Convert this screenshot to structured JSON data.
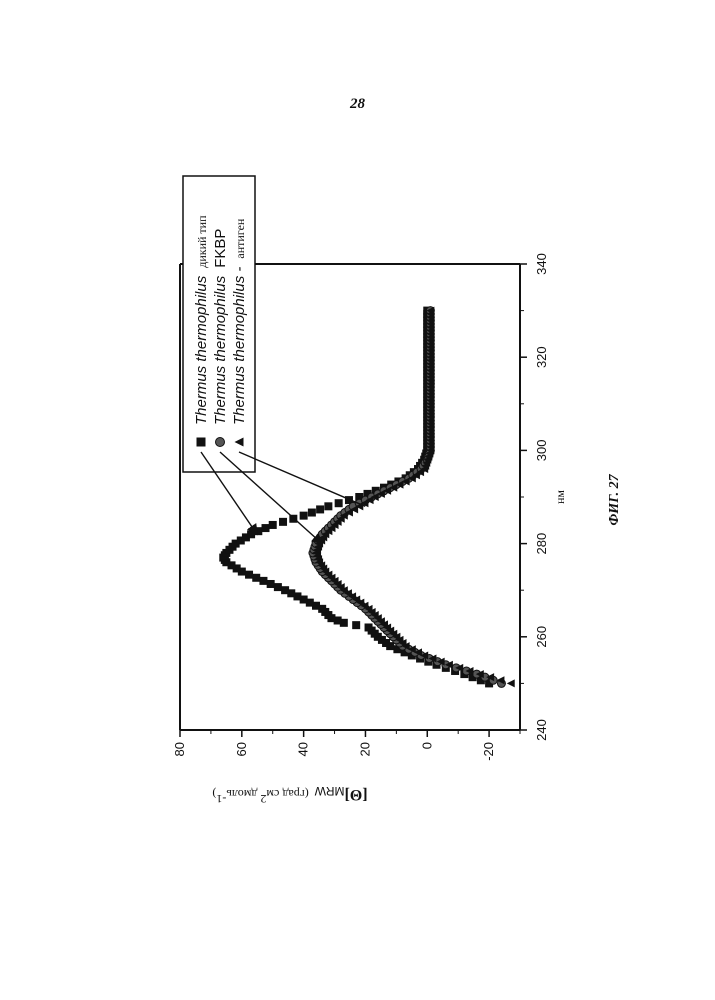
{
  "page": {
    "number": "28",
    "figure_caption": "ФИГ. 27"
  },
  "chart_data": {
    "type": "scatter",
    "title": "",
    "xlabel": "нм",
    "ylabel": "[Θ]MRW (град см2 дмоль-1)",
    "ylabel_parts": {
      "symbol": "[Θ]",
      "sub": "MRW",
      "units_main": "(град см",
      "units_sup1": "2",
      "units_mid": " дмоль",
      "units_sup2": "-1",
      "units_end": ")"
    },
    "xlim": [
      240,
      340
    ],
    "ylim": [
      -30,
      80
    ],
    "xticks": [
      "240",
      "260",
      "280",
      "300",
      "320",
      "340"
    ],
    "yticks": [
      "-20",
      "0",
      "20",
      "40",
      "60",
      "80"
    ],
    "xtick_values": [
      240,
      260,
      280,
      300,
      320,
      340
    ],
    "ytick_values": [
      -20,
      0,
      20,
      40,
      60,
      80
    ],
    "orientation": "rotated 90° counter-clockwise on page",
    "legend_placement": "top-left",
    "series": [
      {
        "name": "Thermus thermophilus дикий тип",
        "name_main": "Thermus thermophilus",
        "name_suffix": "дикий тип",
        "marker": "square",
        "color": "#111111",
        "x": [
          250,
          252,
          254,
          256,
          258,
          260,
          262,
          263,
          264,
          266,
          268,
          270,
          272,
          274,
          276,
          277,
          278,
          280,
          282,
          284,
          286,
          288,
          290,
          292,
          294,
          296,
          298,
          300,
          305,
          310,
          315,
          320,
          325,
          330
        ],
        "y": [
          -20,
          -12,
          -3,
          5,
          12,
          16,
          19,
          27,
          31,
          34,
          40,
          46,
          53,
          60,
          65,
          66,
          65,
          62,
          57,
          50,
          40,
          32,
          22,
          14,
          7,
          3,
          1,
          0,
          0,
          0,
          0,
          0,
          0,
          0
        ]
      },
      {
        "name": "Thermus thermophilus FKBP",
        "name_main": "Thermus thermophilus",
        "name_suffix": "FKBP",
        "marker": "circle",
        "color": "#111111",
        "x": [
          250,
          252,
          254,
          256,
          258,
          260,
          262,
          264,
          266,
          268,
          270,
          272,
          274,
          276,
          278,
          280,
          282,
          284,
          286,
          288,
          290,
          292,
          294,
          296,
          298,
          300,
          305,
          310,
          315,
          320,
          325,
          330
        ],
        "y": [
          -24,
          -16,
          -6,
          2,
          8,
          11,
          14,
          17,
          20,
          24,
          28,
          31,
          34,
          36,
          37,
          36,
          34,
          31,
          28,
          24,
          18,
          12,
          6,
          2,
          0,
          -1,
          -1,
          -1,
          -1,
          -1,
          -1,
          -1
        ]
      },
      {
        "name": "Thermus thermophilus - антиген",
        "name_main": "Thermus thermophilus -",
        "name_suffix": "антиген",
        "marker": "triangle",
        "color": "#111111",
        "x": [
          250,
          252,
          254,
          256,
          258,
          260,
          262,
          264,
          266,
          268,
          270,
          272,
          274,
          276,
          278,
          280,
          282,
          284,
          286,
          288,
          290,
          292,
          294,
          296,
          298,
          300,
          305,
          310,
          315,
          320,
          325,
          330
        ],
        "y": [
          -27,
          -17,
          -7,
          1,
          7,
          10,
          13,
          16,
          19,
          23,
          27,
          30,
          33,
          35,
          36,
          35,
          33,
          30,
          27,
          22,
          17,
          11,
          5,
          1,
          0,
          -1,
          -1,
          -1,
          -1,
          -1,
          -1,
          -1
        ]
      }
    ]
  }
}
